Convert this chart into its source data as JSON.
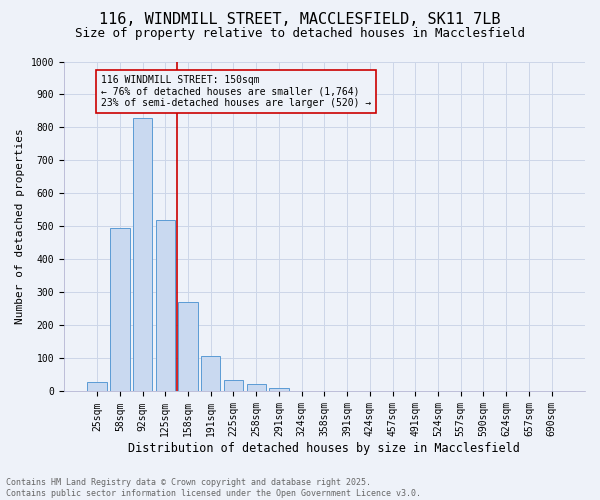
{
  "title": "116, WINDMILL STREET, MACCLESFIELD, SK11 7LB",
  "subtitle": "Size of property relative to detached houses in Macclesfield",
  "xlabel": "Distribution of detached houses by size in Macclesfield",
  "ylabel": "Number of detached properties",
  "bar_labels": [
    "25sqm",
    "58sqm",
    "92sqm",
    "125sqm",
    "158sqm",
    "191sqm",
    "225sqm",
    "258sqm",
    "291sqm",
    "324sqm",
    "358sqm",
    "391sqm",
    "424sqm",
    "457sqm",
    "491sqm",
    "524sqm",
    "557sqm",
    "590sqm",
    "624sqm",
    "657sqm",
    "690sqm"
  ],
  "bar_values": [
    30,
    495,
    830,
    520,
    270,
    108,
    35,
    22,
    10,
    0,
    0,
    0,
    0,
    0,
    0,
    0,
    0,
    0,
    0,
    0,
    0
  ],
  "bar_color": "#c9d9f0",
  "bar_edge_color": "#5b9bd5",
  "vline_index": 4,
  "vline_color": "#cc0000",
  "ylim": [
    0,
    1000
  ],
  "yticks": [
    0,
    100,
    200,
    300,
    400,
    500,
    600,
    700,
    800,
    900,
    1000
  ],
  "annotation_title": "116 WINDMILL STREET: 150sqm",
  "annotation_line1": "← 76% of detached houses are smaller (1,764)",
  "annotation_line2": "23% of semi-detached houses are larger (520) →",
  "annotation_box_color": "#cc0000",
  "grid_color": "#ccd6e8",
  "background_color": "#eef2f9",
  "footer_line1": "Contains HM Land Registry data © Crown copyright and database right 2025.",
  "footer_line2": "Contains public sector information licensed under the Open Government Licence v3.0.",
  "title_fontsize": 11,
  "subtitle_fontsize": 9,
  "ylabel_fontsize": 8,
  "xlabel_fontsize": 8.5,
  "tick_fontsize": 7,
  "annotation_fontsize": 7,
  "footer_fontsize": 6
}
